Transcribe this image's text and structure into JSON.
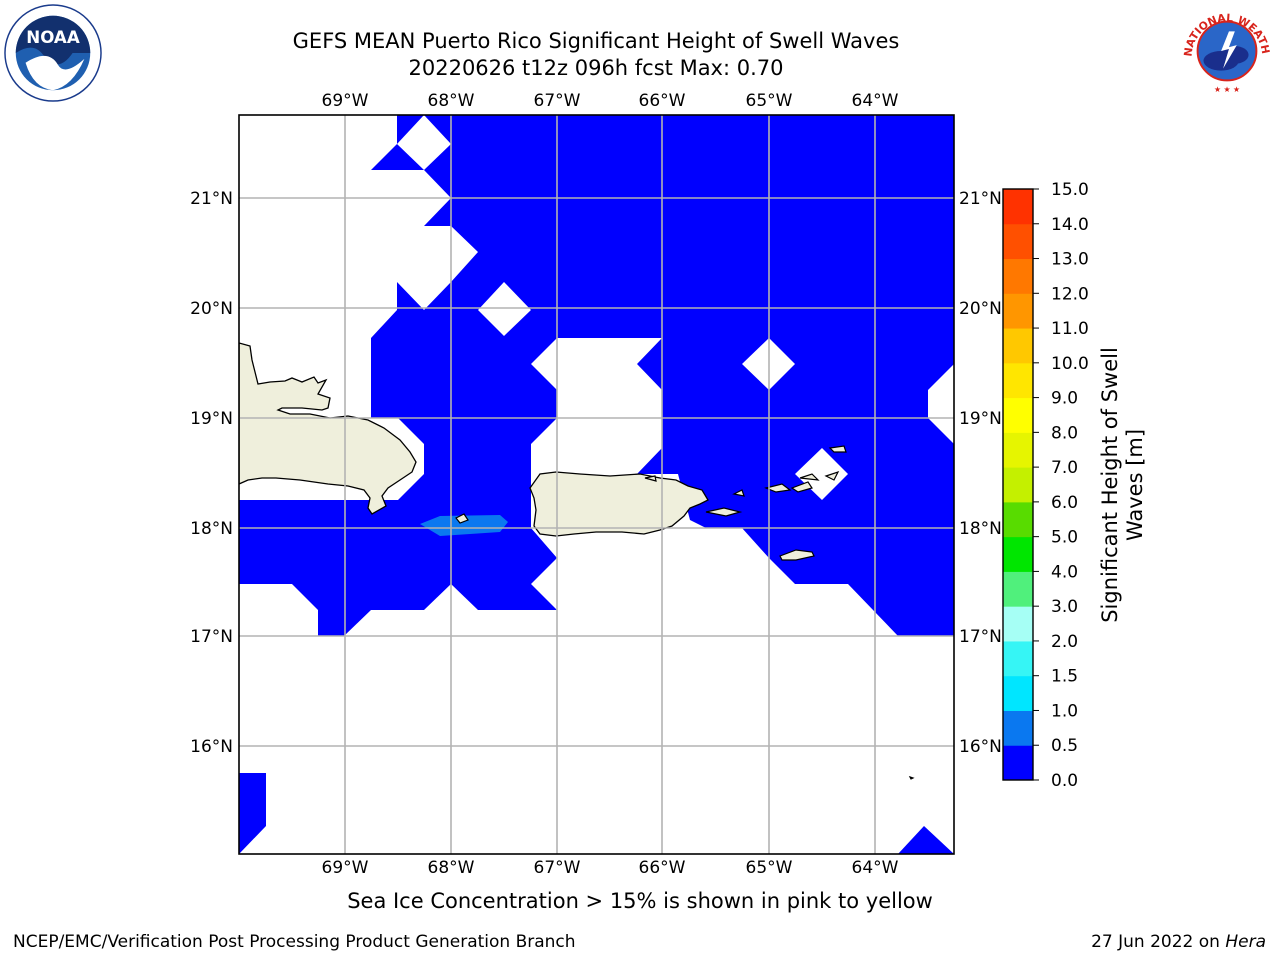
{
  "title": {
    "line1": "GEFS MEAN Puerto Rico Significant Height of Swell Waves",
    "line2": "20220626 t12z 096h fcst   Max: 0.70"
  },
  "map": {
    "lon_range": [
      -70,
      -63.25
    ],
    "lat_range": [
      15.0,
      21.75
    ],
    "lon_ticks": [
      "69°W",
      "68°W",
      "67°W",
      "66°W",
      "65°W",
      "64°W"
    ],
    "lat_ticks": [
      "21°N",
      "20°N",
      "19°N",
      "18°N",
      "17°N",
      "16°N"
    ],
    "grid": true
  },
  "colorbar": {
    "label": "Significant Height of Swell Waves [m]",
    "label_lines": [
      "Significant Height of Swell",
      "Waves [m]"
    ],
    "ticks": [
      "0.0",
      "0.5",
      "1.0",
      "1.5",
      "2.0",
      "3.0",
      "4.0",
      "5.0",
      "6.0",
      "7.0",
      "8.0",
      "9.0",
      "10.0",
      "11.0",
      "12.0",
      "13.0",
      "14.0",
      "15.0"
    ],
    "colors": [
      "#0000ff",
      "#0a78f0",
      "#00e6ff",
      "#36f5f5",
      "#a6fff5",
      "#50f07c",
      "#00e600",
      "#58dc00",
      "#c4f000",
      "#e6f500",
      "#ffff00",
      "#ffe600",
      "#ffc800",
      "#ff9600",
      "#ff7800",
      "#ff5000",
      "#ff3200"
    ]
  },
  "note": "Sea Ice Concentration > 15% is shown in pink to yellow",
  "footer": {
    "left": "NCEP/EMC/Verification Post Processing Product Generation Branch",
    "right_date": "27 Jun 2022 on ",
    "right_host": "Hera"
  },
  "logos": {
    "noaa_text": "NOAA",
    "nws_text": "NATIONAL WEATHER SERVICE"
  }
}
